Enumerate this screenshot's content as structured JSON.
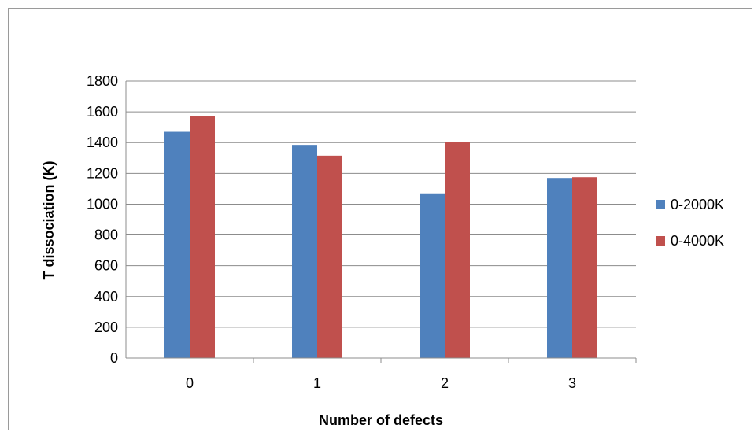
{
  "chart_data": {
    "type": "bar",
    "categories": [
      "0",
      "1",
      "2",
      "3"
    ],
    "series": [
      {
        "name": "0-2000K",
        "color": "#4f81bd",
        "values": [
          1470,
          1385,
          1070,
          1170
        ]
      },
      {
        "name": "0-4000K",
        "color": "#c0504d",
        "values": [
          1570,
          1315,
          1405,
          1175
        ]
      }
    ],
    "xlabel": "Number of defects",
    "ylabel": "T dissociation  (K)",
    "ylim": [
      0,
      1800
    ],
    "yticks": [
      "0",
      "200",
      "400",
      "600",
      "800",
      "1000",
      "1200",
      "1400",
      "1600",
      "1800"
    ],
    "grid": true,
    "legend_position": "right"
  }
}
